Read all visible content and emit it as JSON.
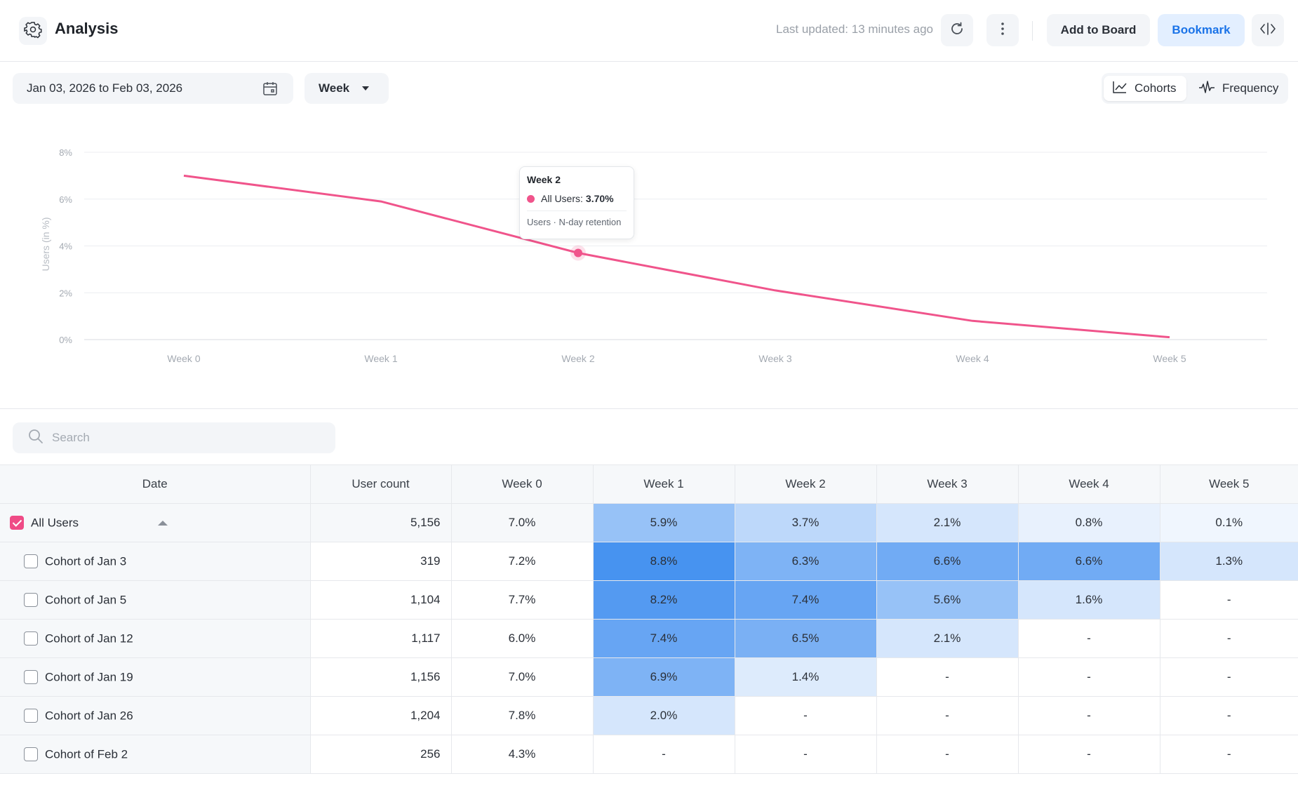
{
  "header": {
    "title": "Analysis",
    "last_updated": "Last updated: 13 minutes ago",
    "add_to_board_label": "Add to Board",
    "bookmark_label": "Bookmark",
    "icons": [
      "gear-icon",
      "refresh-icon",
      "more-vertical-icon",
      "code-icon"
    ]
  },
  "controls": {
    "date_range": "Jan 03, 2026 to Feb 03, 2026",
    "interval": "Week",
    "views": [
      {
        "label": "Cohorts",
        "active": true
      },
      {
        "label": "Frequency",
        "active": false
      }
    ]
  },
  "chart_data": {
    "type": "line",
    "title": "",
    "xlabel": "",
    "ylabel": "Users (in %)",
    "x": [
      "Week 0",
      "Week 1",
      "Week 2",
      "Week 3",
      "Week 4",
      "Week 5"
    ],
    "yticks": [
      "0%",
      "2%",
      "4%",
      "6%",
      "8%"
    ],
    "ylim": [
      0,
      8
    ],
    "grid": true,
    "series": [
      {
        "name": "All Users",
        "color": "#f0548b",
        "values": [
          7.0,
          5.9,
          3.7,
          2.1,
          0.8,
          0.1
        ]
      }
    ],
    "tooltip": {
      "title": "Week 2",
      "series_label": "All Users:",
      "value": "3.70%",
      "footer": "Users · N-day retention",
      "point_index": 2
    }
  },
  "search": {
    "placeholder": "Search",
    "value": ""
  },
  "table": {
    "columns": [
      "Date",
      "User count",
      "Week 0",
      "Week 1",
      "Week 2",
      "Week 3",
      "Week 4",
      "Week 5"
    ],
    "heat_color": "#418ff0",
    "rows": [
      {
        "label": "All Users",
        "checked": true,
        "count": "5,156",
        "cells": [
          "7.0%",
          "5.9%",
          "3.7%",
          "2.1%",
          "0.8%",
          "0.1%"
        ],
        "levels": [
          null,
          0.55,
          0.35,
          0.22,
          0.12,
          0.08
        ]
      },
      {
        "label": "Cohort of Jan 3",
        "checked": false,
        "count": "319",
        "cells": [
          "7.2%",
          "8.8%",
          "6.3%",
          "6.6%",
          "6.6%",
          "1.3%"
        ],
        "levels": [
          null,
          0.97,
          0.68,
          0.75,
          0.75,
          0.22
        ]
      },
      {
        "label": "Cohort of Jan 5",
        "checked": false,
        "count": "1,104",
        "cells": [
          "7.7%",
          "8.2%",
          "7.4%",
          "5.6%",
          "1.6%",
          "-"
        ],
        "levels": [
          null,
          0.9,
          0.8,
          0.55,
          0.22,
          null
        ]
      },
      {
        "label": "Cohort of Jan 12",
        "checked": false,
        "count": "1,117",
        "cells": [
          "6.0%",
          "7.4%",
          "6.5%",
          "2.1%",
          "-",
          "-"
        ],
        "levels": [
          null,
          0.8,
          0.7,
          0.22,
          null,
          null
        ]
      },
      {
        "label": "Cohort of Jan 19",
        "checked": false,
        "count": "1,156",
        "cells": [
          "7.0%",
          "6.9%",
          "1.4%",
          "-",
          "-",
          "-"
        ],
        "levels": [
          null,
          0.68,
          0.18,
          null,
          null,
          null
        ]
      },
      {
        "label": "Cohort of Jan 26",
        "checked": false,
        "count": "1,204",
        "cells": [
          "7.8%",
          "2.0%",
          "-",
          "-",
          "-",
          "-"
        ],
        "levels": [
          null,
          0.22,
          null,
          null,
          null,
          null
        ]
      },
      {
        "label": "Cohort of Feb 2",
        "checked": false,
        "count": "256",
        "cells": [
          "4.3%",
          "-",
          "-",
          "-",
          "-",
          "-"
        ],
        "levels": [
          null,
          null,
          null,
          null,
          null,
          null
        ]
      }
    ]
  }
}
